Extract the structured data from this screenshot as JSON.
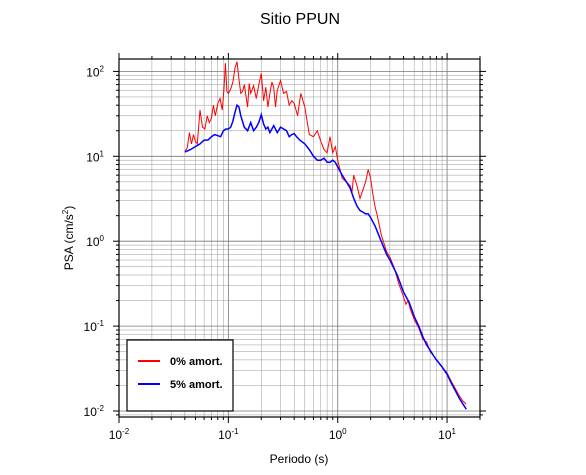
{
  "chart_data": {
    "type": "line",
    "title": "Sitio PPUN",
    "xlabel": "Periodo (s)",
    "ylabel_base": "PSA (cm/s",
    "ylabel_sup": "2",
    "ylabel_close": ")",
    "x_scale": "log",
    "y_scale": "log",
    "xlim": [
      0.01,
      20
    ],
    "ylim": [
      0.0085,
      140
    ],
    "grid": true,
    "legend_position": "bottom-left",
    "x_ticks": [
      {
        "value": 0.01,
        "base": "10",
        "exp": "-2"
      },
      {
        "value": 0.1,
        "base": "10",
        "exp": "-1"
      },
      {
        "value": 1,
        "base": "10",
        "exp": "0"
      },
      {
        "value": 10,
        "base": "10",
        "exp": "1"
      }
    ],
    "y_ticks": [
      {
        "value": 0.01,
        "base": "10",
        "exp": "-2"
      },
      {
        "value": 0.1,
        "base": "10",
        "exp": "-1"
      },
      {
        "value": 1,
        "base": "10",
        "exp": "0"
      },
      {
        "value": 10,
        "base": "10",
        "exp": "1"
      },
      {
        "value": 100,
        "base": "10",
        "exp": "2"
      }
    ],
    "series": [
      {
        "name": "0% amort.",
        "color": "#ff0000",
        "points": [
          [
            0.04,
            11.5
          ],
          [
            0.042,
            12.5
          ],
          [
            0.044,
            19
          ],
          [
            0.046,
            14
          ],
          [
            0.048,
            18
          ],
          [
            0.05,
            15
          ],
          [
            0.052,
            14
          ],
          [
            0.055,
            35
          ],
          [
            0.058,
            22
          ],
          [
            0.061,
            21
          ],
          [
            0.064,
            30
          ],
          [
            0.067,
            25
          ],
          [
            0.07,
            28
          ],
          [
            0.073,
            40
          ],
          [
            0.076,
            30
          ],
          [
            0.08,
            42
          ],
          [
            0.084,
            48
          ],
          [
            0.088,
            35
          ],
          [
            0.091,
            60
          ],
          [
            0.094,
            125
          ],
          [
            0.097,
            58
          ],
          [
            0.1,
            55
          ],
          [
            0.105,
            62
          ],
          [
            0.11,
            75
          ],
          [
            0.115,
            110
          ],
          [
            0.12,
            130
          ],
          [
            0.125,
            80
          ],
          [
            0.13,
            55
          ],
          [
            0.135,
            58
          ],
          [
            0.14,
            70
          ],
          [
            0.15,
            38
          ],
          [
            0.155,
            72
          ],
          [
            0.16,
            55
          ],
          [
            0.17,
            68
          ],
          [
            0.18,
            48
          ],
          [
            0.19,
            70
          ],
          [
            0.2,
            95
          ],
          [
            0.21,
            45
          ],
          [
            0.22,
            65
          ],
          [
            0.23,
            38
          ],
          [
            0.24,
            55
          ],
          [
            0.25,
            75
          ],
          [
            0.26,
            65
          ],
          [
            0.27,
            38
          ],
          [
            0.28,
            60
          ],
          [
            0.3,
            78
          ],
          [
            0.32,
            55
          ],
          [
            0.34,
            58
          ],
          [
            0.36,
            40
          ],
          [
            0.38,
            45
          ],
          [
            0.4,
            42
          ],
          [
            0.43,
            30
          ],
          [
            0.46,
            55
          ],
          [
            0.5,
            38
          ],
          [
            0.55,
            18
          ],
          [
            0.6,
            17
          ],
          [
            0.65,
            20
          ],
          [
            0.7,
            15
          ],
          [
            0.75,
            12
          ],
          [
            0.8,
            11
          ],
          [
            0.85,
            17
          ],
          [
            0.9,
            11
          ],
          [
            0.95,
            13
          ],
          [
            1.0,
            9
          ],
          [
            1.05,
            7
          ],
          [
            1.1,
            5.5
          ],
          [
            1.2,
            5
          ],
          [
            1.3,
            4.5
          ],
          [
            1.35,
            3.8
          ],
          [
            1.4,
            6
          ],
          [
            1.5,
            4.5
          ],
          [
            1.6,
            3.2
          ],
          [
            1.7,
            4
          ],
          [
            1.8,
            5
          ],
          [
            1.9,
            7
          ],
          [
            2.0,
            5.5
          ],
          [
            2.1,
            3.5
          ],
          [
            2.2,
            2.5
          ],
          [
            2.3,
            2.0
          ],
          [
            2.5,
            1.2
          ],
          [
            2.8,
            0.75
          ],
          [
            3.0,
            0.65
          ],
          [
            3.3,
            0.48
          ],
          [
            3.6,
            0.32
          ],
          [
            4.0,
            0.22
          ],
          [
            4.2,
            0.18
          ],
          [
            4.4,
            0.2
          ],
          [
            4.6,
            0.16
          ],
          [
            5.0,
            0.12
          ],
          [
            5.5,
            0.095
          ],
          [
            6.0,
            0.07
          ],
          [
            6.5,
            0.065
          ],
          [
            7.0,
            0.05
          ],
          [
            7.5,
            0.045
          ],
          [
            8.0,
            0.04
          ],
          [
            9.0,
            0.033
          ],
          [
            10.0,
            0.028
          ],
          [
            11.0,
            0.022
          ],
          [
            12.0,
            0.018
          ],
          [
            13.0,
            0.015
          ],
          [
            14.0,
            0.013
          ],
          [
            15.0,
            0.012
          ]
        ]
      },
      {
        "name": "5% amort.",
        "color": "#0000ff",
        "points": [
          [
            0.04,
            11.2
          ],
          [
            0.045,
            12
          ],
          [
            0.05,
            13
          ],
          [
            0.055,
            14
          ],
          [
            0.06,
            15.5
          ],
          [
            0.065,
            15.5
          ],
          [
            0.07,
            17
          ],
          [
            0.075,
            18
          ],
          [
            0.08,
            17.5
          ],
          [
            0.085,
            17
          ],
          [
            0.09,
            20
          ],
          [
            0.095,
            21
          ],
          [
            0.1,
            21
          ],
          [
            0.105,
            22
          ],
          [
            0.11,
            26
          ],
          [
            0.115,
            33
          ],
          [
            0.12,
            40
          ],
          [
            0.125,
            38
          ],
          [
            0.13,
            30
          ],
          [
            0.14,
            22
          ],
          [
            0.15,
            20
          ],
          [
            0.16,
            25
          ],
          [
            0.17,
            20
          ],
          [
            0.18,
            22
          ],
          [
            0.19,
            25
          ],
          [
            0.2,
            31
          ],
          [
            0.21,
            24
          ],
          [
            0.22,
            21
          ],
          [
            0.23,
            22
          ],
          [
            0.24,
            19
          ],
          [
            0.25,
            21
          ],
          [
            0.26,
            23
          ],
          [
            0.28,
            19
          ],
          [
            0.3,
            22
          ],
          [
            0.32,
            21
          ],
          [
            0.34,
            20
          ],
          [
            0.36,
            17
          ],
          [
            0.38,
            18
          ],
          [
            0.4,
            18.5
          ],
          [
            0.42,
            17
          ],
          [
            0.45,
            15.5
          ],
          [
            0.5,
            14
          ],
          [
            0.55,
            12
          ],
          [
            0.6,
            10
          ],
          [
            0.65,
            9
          ],
          [
            0.7,
            9
          ],
          [
            0.75,
            9.5
          ],
          [
            0.8,
            8.5
          ],
          [
            0.85,
            8.5
          ],
          [
            0.9,
            9
          ],
          [
            0.95,
            8.5
          ],
          [
            1.0,
            7.5
          ],
          [
            1.1,
            6
          ],
          [
            1.2,
            5
          ],
          [
            1.3,
            4.2
          ],
          [
            1.4,
            3.2
          ],
          [
            1.5,
            2.6
          ],
          [
            1.6,
            2.3
          ],
          [
            1.7,
            2.2
          ],
          [
            1.8,
            2.1
          ],
          [
            1.9,
            2.1
          ],
          [
            2.0,
            1.9
          ],
          [
            2.2,
            1.5
          ],
          [
            2.5,
            1.0
          ],
          [
            2.8,
            0.7
          ],
          [
            3.0,
            0.6
          ],
          [
            3.5,
            0.4
          ],
          [
            4.0,
            0.25
          ],
          [
            4.5,
            0.19
          ],
          [
            5.0,
            0.13
          ],
          [
            5.5,
            0.1
          ],
          [
            6.0,
            0.075
          ],
          [
            6.5,
            0.06
          ],
          [
            7.0,
            0.052
          ],
          [
            7.5,
            0.045
          ],
          [
            8.0,
            0.04
          ],
          [
            9.0,
            0.033
          ],
          [
            10.0,
            0.027
          ],
          [
            11.0,
            0.021
          ],
          [
            12.0,
            0.017
          ],
          [
            13.0,
            0.014
          ],
          [
            14.0,
            0.012
          ],
          [
            15.0,
            0.0105
          ]
        ]
      }
    ]
  }
}
